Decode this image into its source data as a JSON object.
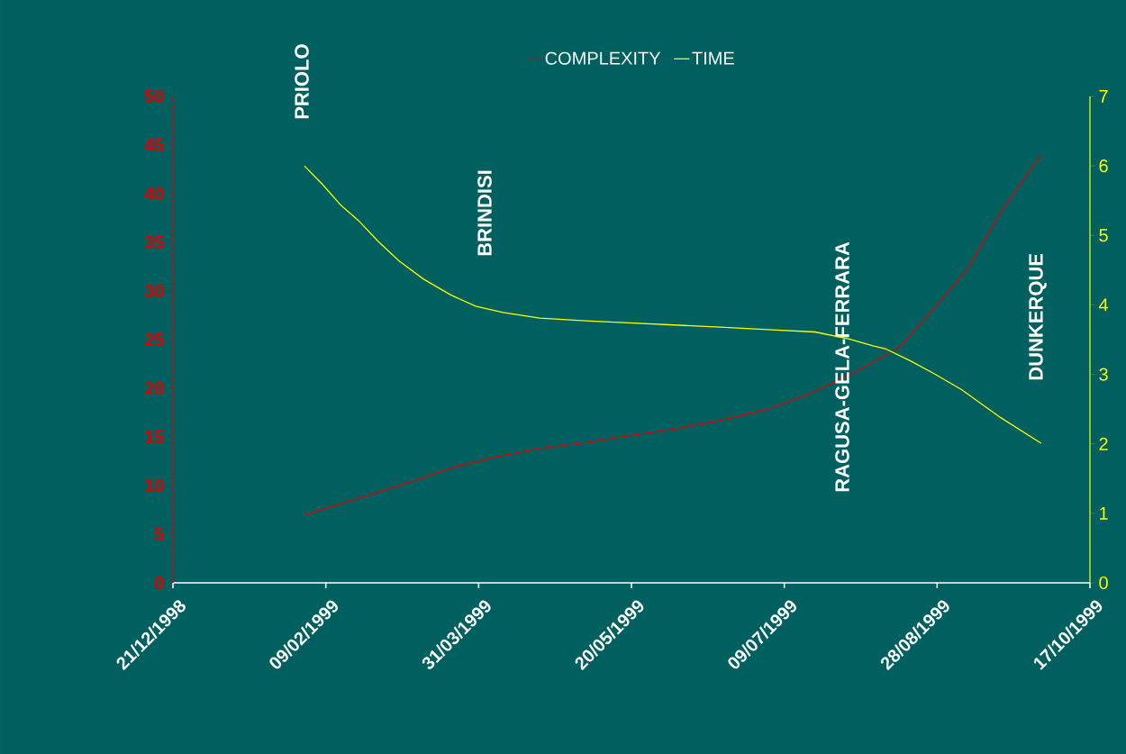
{
  "chart_data": {
    "type": "line",
    "x": [
      "1999-02-02",
      "1999-02-20",
      "1999-03-07",
      "1999-03-22",
      "1999-04-05",
      "1999-04-20",
      "1999-05-05",
      "1999-05-19",
      "1999-06-03",
      "1999-06-18",
      "1999-07-03",
      "1999-07-17",
      "1999-08-01",
      "1999-08-16",
      "1999-08-27",
      "1999-09-07",
      "1999-09-17",
      "1999-09-26",
      "1999-10-01"
    ],
    "series": [
      {
        "name": "COMPLEXITY",
        "color": "#e00000",
        "values": [
          7.0,
          8.7,
          10.2,
          11.8,
          12.9,
          13.8,
          14.4,
          15.1,
          15.8,
          16.7,
          17.8,
          19.4,
          21.6,
          24.3,
          28.2,
          32.3,
          37.7,
          41.8,
          44.0
        ]
      },
      {
        "name": "TIME",
        "color": "#ffff00",
        "axis": "y2",
        "x": [
          "1999-02-02",
          "1999-02-08",
          "1999-02-14",
          "1999-02-20",
          "1999-02-26",
          "1999-03-05",
          "1999-03-13",
          "1999-03-22",
          "1999-03-30",
          "1999-04-08",
          "1999-04-20",
          "1999-05-05",
          "1999-05-19",
          "1999-06-18",
          "1999-07-05",
          "1999-07-19",
          "1999-07-30",
          "1999-08-07",
          "1999-08-11",
          "1999-08-19",
          "1999-08-27",
          "1999-09-05",
          "1999-09-17",
          "1999-10-01"
        ],
        "values": [
          6.0,
          5.73,
          5.43,
          5.2,
          4.92,
          4.63,
          4.37,
          4.14,
          3.98,
          3.89,
          3.81,
          3.77,
          3.74,
          3.68,
          3.64,
          3.61,
          3.51,
          3.41,
          3.37,
          3.2,
          3.01,
          2.78,
          2.4,
          2.01
        ]
      }
    ],
    "xlim": [
      "1998-12-21",
      "1999-10-17"
    ],
    "xticks": [
      {
        "value": "1998-12-21",
        "label": "21/12/1998"
      },
      {
        "value": "1999-02-09",
        "label": "09/02/1999"
      },
      {
        "value": "1999-03-31",
        "label": "31/03/1999"
      },
      {
        "value": "1999-05-20",
        "label": "20/05/1999"
      },
      {
        "value": "1999-07-09",
        "label": "09/07/1999"
      },
      {
        "value": "1999-08-28",
        "label": "28/08/1999"
      },
      {
        "value": "1999-10-17",
        "label": "17/10/1999"
      }
    ],
    "ylim": [
      0,
      50
    ],
    "yticks": [
      0,
      5,
      10,
      15,
      20,
      25,
      30,
      35,
      40,
      45,
      50
    ],
    "y2lim": [
      0,
      7
    ],
    "y2ticks": [
      0,
      1,
      2,
      3,
      4,
      5,
      6,
      7
    ],
    "annotations": [
      "PRIOLO",
      "BRINDISI",
      "RAGUSA-GELA-FERRARA",
      "DUNKERQUE"
    ],
    "legend": "top",
    "grid": false,
    "marker": "none",
    "line_style": "solid"
  }
}
